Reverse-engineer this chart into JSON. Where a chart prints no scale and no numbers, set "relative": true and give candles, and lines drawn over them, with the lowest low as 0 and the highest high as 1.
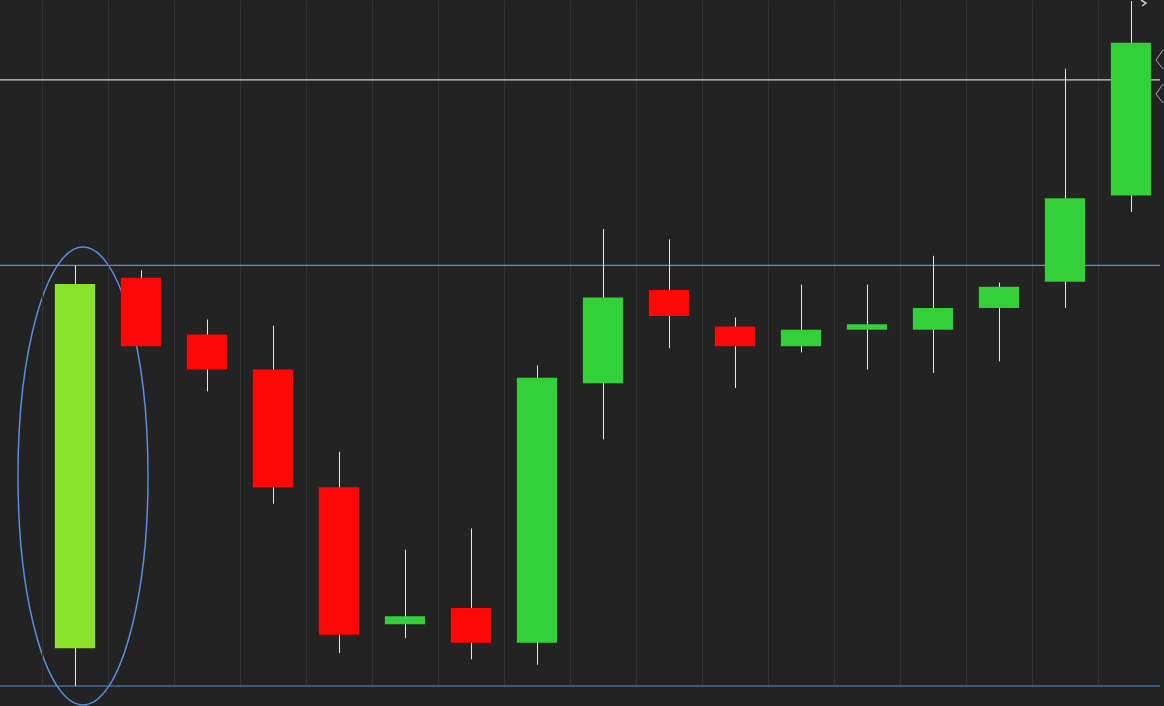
{
  "chart_data": {
    "type": "candlestick",
    "relative": true,
    "grid": "x",
    "categories": [
      null,
      null,
      null,
      null,
      null,
      null,
      null,
      null,
      null,
      null,
      null,
      null,
      null,
      null,
      null,
      null,
      null
    ],
    "ohlc": [
      [
        0.055,
        0.614,
        0,
        0.587
      ],
      [
        0.596,
        0.607,
        0.496,
        0.496
      ],
      [
        0.513,
        0.535,
        0.43,
        0.462
      ],
      [
        0.462,
        0.526,
        0.266,
        0.29
      ],
      [
        0.29,
        0.342,
        0.048,
        0.075
      ],
      [
        0.09,
        0.199,
        0.07,
        0.102
      ],
      [
        0.114,
        0.23,
        0.039,
        0.063
      ],
      [
        0.063,
        0.468,
        0.031,
        0.45
      ],
      [
        0.442,
        0.667,
        0.36,
        0.567
      ],
      [
        0.578,
        0.652,
        0.493,
        0.54
      ],
      [
        0.525,
        0.538,
        0.435,
        0.496
      ],
      [
        0.496,
        0.586,
        0.487,
        0.52
      ],
      [
        0.52,
        0.586,
        0.462,
        0.528
      ],
      [
        0.52,
        0.628,
        0.457,
        0.552
      ],
      [
        0.552,
        0.589,
        0.474,
        0.583
      ],
      [
        0.59,
        0.901,
        0.552,
        0.712
      ],
      [
        0.716,
        1,
        0.692,
        0.939
      ]
    ],
    "colors": [
      "#8ae22a",
      "#ff0707",
      "#ff0707",
      "#ff0707",
      "#ff0707",
      "#34d03a",
      "#ff0707",
      "#34d03a",
      "#34d03a",
      "#ff0707",
      "#ff0707",
      "#34d03a",
      "#34d03a",
      "#34d03a",
      "#34d03a",
      "#34d03a",
      "#34d03a"
    ],
    "ref_lines": [
      {
        "axis": "y",
        "value": 0.614,
        "color": "#5b8de0"
      },
      {
        "axis": "y",
        "value": 0,
        "color": "#5b8de0"
      },
      {
        "axis": "y",
        "value": 0.885,
        "color": "#d0d0d0"
      }
    ]
  }
}
